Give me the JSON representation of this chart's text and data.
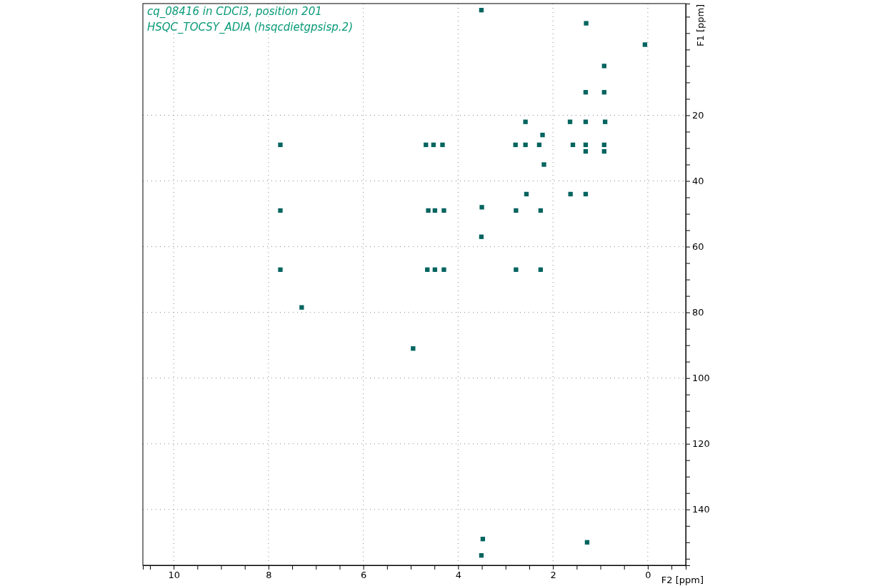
{
  "chart_data": {
    "type": "scatter",
    "title": "cq_08416 in CDCl3, position 201",
    "subtitle": "HSQC_TOCSY_ADIA (hsqcdietgpsisp.2)",
    "xlabel": "F2 [ppm]",
    "ylabel": "F1 [ppm]",
    "xlim": [
      10.65,
      -0.8
    ],
    "ylim": [
      157,
      -14
    ],
    "xticks": [
      {
        "value": 10.5,
        "label": null
      },
      10,
      {
        "value": 9.5,
        "label": null
      },
      {
        "value": 9,
        "label": null
      },
      {
        "value": 8.5,
        "label": null
      },
      8,
      {
        "value": 7.5,
        "label": null
      },
      {
        "value": 7,
        "label": null
      },
      {
        "value": 6.5,
        "label": null
      },
      6,
      {
        "value": 5.5,
        "label": null
      },
      {
        "value": 5,
        "label": null
      },
      {
        "value": 4.5,
        "label": null
      },
      4,
      {
        "value": 3.5,
        "label": null
      },
      {
        "value": 3,
        "label": null
      },
      {
        "value": 2.5,
        "label": null
      },
      2,
      {
        "value": 1.5,
        "label": null
      },
      {
        "value": 1,
        "label": null
      },
      {
        "value": 0.5,
        "label": null
      },
      0,
      {
        "value": -0.5,
        "label": null
      }
    ],
    "yticks": [
      {
        "value": -10,
        "label": null
      },
      {
        "value": -5,
        "label": null
      },
      {
        "value": 0,
        "label": null
      },
      {
        "value": 5,
        "label": null
      },
      {
        "value": 10,
        "label": null
      },
      {
        "value": 15,
        "label": null
      },
      20,
      {
        "value": 25,
        "label": null
      },
      {
        "value": 30,
        "label": null
      },
      {
        "value": 35,
        "label": null
      },
      40,
      {
        "value": 45,
        "label": null
      },
      {
        "value": 50,
        "label": null
      },
      {
        "value": 55,
        "label": null
      },
      60,
      {
        "value": 65,
        "label": null
      },
      {
        "value": 70,
        "label": null
      },
      {
        "value": 75,
        "label": null
      },
      80,
      {
        "value": 85,
        "label": null
      },
      {
        "value": 90,
        "label": null
      },
      {
        "value": 95,
        "label": null
      },
      100,
      {
        "value": 105,
        "label": null
      },
      {
        "value": 110,
        "label": null
      },
      {
        "value": 115,
        "label": null
      },
      120,
      {
        "value": 125,
        "label": null
      },
      {
        "value": 130,
        "label": null
      },
      {
        "value": 135,
        "label": null
      },
      140,
      {
        "value": 145,
        "label": null
      },
      {
        "value": 150,
        "label": null
      },
      {
        "value": 155,
        "label": null
      }
    ],
    "grid": true,
    "marker": "square",
    "series": [
      {
        "color": "#00645f",
        "x": [
          3.51,
          1.3,
          0.06,
          0.92,
          1.31,
          0.92,
          2.58,
          1.64,
          1.31,
          0.9,
          4.68,
          4.52,
          4.33,
          2.79,
          2.58,
          2.29,
          1.58,
          1.31,
          0.92,
          7.75,
          0.92,
          1.31,
          2.19,
          2.22,
          2.56,
          1.63,
          1.31,
          7.75,
          4.63,
          4.49,
          4.3,
          2.78,
          2.26,
          3.5,
          3.51,
          7.75,
          4.65,
          4.49,
          4.3,
          2.78,
          2.26,
          7.3,
          4.95,
          1.28,
          3.51,
          3.48
        ],
        "values": [
          -12,
          -8,
          -1.5,
          5,
          13,
          13,
          22,
          22,
          22,
          22,
          29,
          29,
          29,
          29,
          29,
          29,
          29,
          29,
          29,
          29,
          31,
          31,
          35,
          26,
          44,
          44,
          44,
          49,
          49,
          49,
          49,
          49,
          49,
          48,
          57,
          67,
          67,
          67,
          67,
          67,
          67,
          78.5,
          91,
          150,
          154,
          149
        ]
      }
    ]
  }
}
